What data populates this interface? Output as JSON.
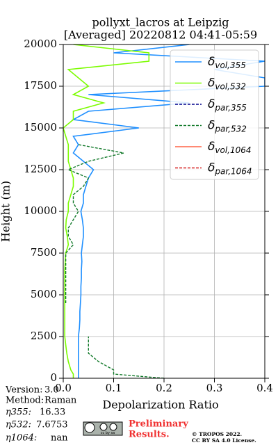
{
  "chart_data": {
    "type": "line",
    "title": [
      "pollyxt_lacros at Leipzig",
      "[Averaged] 20220812 04:41-05:59"
    ],
    "x_label": "Depolarization Ratio",
    "y_label": "Height (m)",
    "xlim": [
      0,
      0.4
    ],
    "xticks": [
      {
        "value": 0,
        "label": "0.0"
      },
      0.1,
      0.2,
      0.3,
      0.4
    ],
    "ylim": [
      0,
      20000
    ],
    "yticks": [
      0,
      2500,
      5000,
      7500,
      10000,
      12500,
      15000,
      17500,
      20000
    ],
    "grid": true,
    "legend": "upper right",
    "y": [
      0,
      250,
      500,
      1000,
      1500,
      2000,
      2500,
      3000,
      3500,
      4000,
      4500,
      5000,
      5500,
      6000,
      6500,
      7000,
      7500,
      8000,
      8500,
      9000,
      9500,
      10000,
      10500,
      11000,
      11500,
      12000,
      12500,
      13000,
      13500,
      14000,
      14500,
      15000,
      15500,
      16000,
      16500,
      17000,
      17500,
      18000,
      18500,
      19000,
      19500,
      20000
    ],
    "series": [
      {
        "name": "δ",
        "subscript": "vol,355",
        "color": "#1e8fff",
        "linestyle": "solid",
        "values": [
          0.03,
          0.03,
          0.03,
          0.03,
          0.03,
          0.03,
          0.03,
          0.032,
          0.033,
          0.033,
          0.034,
          0.035,
          0.035,
          0.036,
          0.036,
          0.037,
          0.036,
          0.038,
          0.04,
          0.04,
          0.038,
          0.035,
          0.04,
          0.04,
          0.045,
          0.05,
          0.06,
          0.04,
          0.02,
          0.03,
          0.02,
          0.15,
          0.02,
          0.05,
          0.25,
          0.05,
          0.4,
          0.4,
          0.3,
          0.4,
          0.1,
          0.25
        ]
      },
      {
        "name": "δ",
        "subscript": "vol,532",
        "color": "#7cfc00",
        "linestyle": "solid",
        "values": [
          0.02,
          0.02,
          0.015,
          0.01,
          0.007,
          0.005,
          0.003,
          0.003,
          0.003,
          0.003,
          0.003,
          0.003,
          0.003,
          0.003,
          0.003,
          0.004,
          0.005,
          0.01,
          0.008,
          0.005,
          0.006,
          0.01,
          0.01,
          0.015,
          0.02,
          0.02,
          0.015,
          0.01,
          0.01,
          0.01,
          0.005,
          0.0,
          0.02,
          0.02,
          0.08,
          0.02,
          0.05,
          0.03,
          0.01,
          0.17,
          0.17,
          0.02
        ]
      },
      {
        "name": "δ",
        "subscript": "par,355",
        "color": "#00008b",
        "linestyle": "dashed",
        "values": [
          null,
          null,
          null,
          null,
          null,
          null,
          null,
          null,
          null,
          null,
          null,
          null,
          null,
          null,
          null,
          null,
          null,
          null,
          null,
          null,
          null,
          null,
          null,
          null,
          null,
          null,
          null,
          null,
          null,
          null,
          null,
          null,
          null,
          null,
          null,
          null,
          null,
          null,
          null,
          null,
          null,
          null
        ]
      },
      {
        "name": "δ",
        "subscript": "par,532",
        "color": "#137a2b",
        "linestyle": "dashed",
        "values": [
          0.2,
          0.1,
          0.1,
          0.07,
          0.05,
          0.05,
          0.05,
          null,
          null,
          null,
          0.005,
          0.005,
          0.005,
          0.005,
          0.005,
          0.005,
          0.005,
          0.02,
          0.01,
          0.01,
          0.02,
          0.03,
          0.02,
          0.02,
          0.04,
          0.05,
          0.01,
          0.05,
          0.12,
          0.03,
          null,
          null,
          null,
          null,
          null,
          null,
          null,
          null,
          null,
          null,
          null,
          null
        ]
      },
      {
        "name": "δ",
        "subscript": "vol,1064",
        "color": "#ff6347",
        "linestyle": "solid",
        "values": [
          null,
          null,
          null,
          null,
          null,
          null,
          null,
          null,
          null,
          null,
          null,
          null,
          null,
          null,
          null,
          null,
          null,
          null,
          null,
          null,
          null,
          null,
          null,
          null,
          null,
          null,
          null,
          null,
          null,
          null,
          null,
          null,
          null,
          null,
          null,
          null,
          null,
          null,
          null,
          null,
          null,
          null
        ]
      },
      {
        "name": "δ",
        "subscript": "par,1064",
        "color": "#d62020",
        "linestyle": "dashed",
        "values": [
          null,
          null,
          null,
          null,
          null,
          null,
          null,
          null,
          null,
          null,
          null,
          null,
          null,
          null,
          null,
          null,
          null,
          null,
          null,
          null,
          null,
          null,
          null,
          null,
          null,
          null,
          null,
          null,
          null,
          null,
          null,
          null,
          null,
          null,
          null,
          null,
          null,
          null,
          null,
          null,
          null,
          null
        ]
      }
    ]
  },
  "info": [
    {
      "label": "Version:",
      "value": "3.0"
    },
    {
      "label": "Method:",
      "value": "Raman"
    },
    {
      "label": "η355:",
      "value": "16.33"
    },
    {
      "label": "η532:",
      "value": "7.6753"
    },
    {
      "label": "η1064:",
      "value": "nan"
    }
  ],
  "footer": {
    "preliminary": [
      "Preliminary",
      "Results."
    ],
    "copyright": [
      "© TROPOS 2022.",
      "CC BY SA 4.0 License."
    ],
    "logo": "cc by sa"
  }
}
